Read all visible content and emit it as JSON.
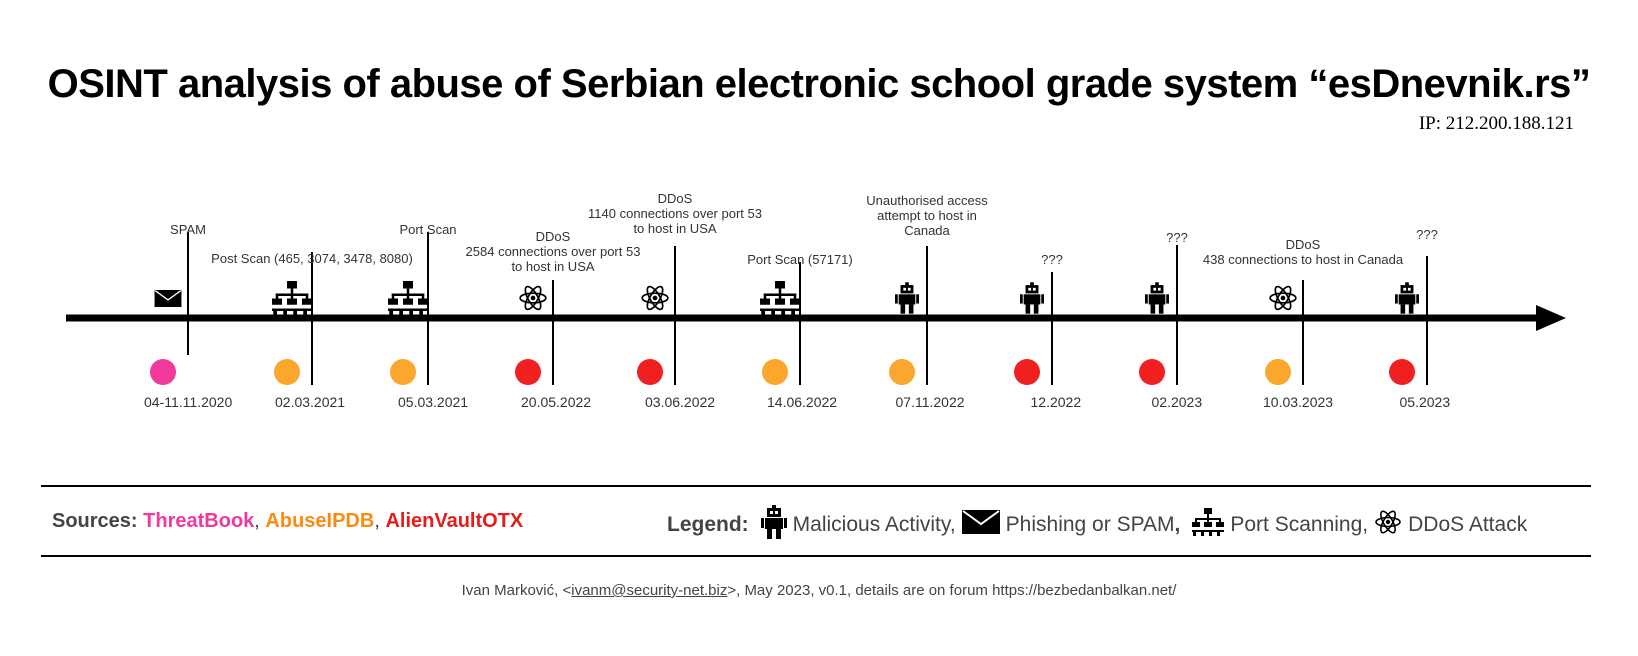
{
  "title": "OSINT analysis of abuse of Serbian electronic school grade system “esDnevnik.rs”",
  "ip": "IP: 212.200.188.121",
  "colors": {
    "threatbook": "#f0399b",
    "abuseipdb": "#fa8b12",
    "alienvault": "#e81b1b",
    "dot_threatbook": "#f0399b",
    "dot_abuseipdb": "#fba62d",
    "dot_alienvault": "#f02020"
  },
  "events": [
    {
      "date": "04-11.11.2020",
      "label": "SPAM",
      "icon": "envelope-icon",
      "source": "threatbook"
    },
    {
      "date": "02.03.2021",
      "label": "Post Scan (465, 3074, 3478, 8080)",
      "icon": "network-icon",
      "source": "abuseipdb"
    },
    {
      "date": "05.03.2021",
      "label": "Port Scan",
      "icon": "network-icon",
      "source": "abuseipdb"
    },
    {
      "date": "20.05.2022",
      "label": "DDoS\n2584 connections over port 53\nto host in USA",
      "icon": "atom-icon",
      "source": "alienvault"
    },
    {
      "date": "03.06.2022",
      "label": "DDoS\n1140 connections over port 53\nto host in USA",
      "icon": "atom-icon",
      "source": "alienvault"
    },
    {
      "date": "14.06.2022",
      "label": "Port Scan (57171)",
      "icon": "network-icon",
      "source": "abuseipdb"
    },
    {
      "date": "07.11.2022",
      "label": "Unauthorised access\nattempt to host in\nCanada",
      "icon": "robot-icon",
      "source": "abuseipdb"
    },
    {
      "date": "12.2022",
      "label": "???",
      "icon": "robot-icon",
      "source": "alienvault"
    },
    {
      "date": "02.2023",
      "label": "???",
      "icon": "robot-icon",
      "source": "alienvault"
    },
    {
      "date": "10.03.2023",
      "label": "DDoS\n438 connections to host in Canada",
      "icon": "atom-icon",
      "source": "abuseipdb"
    },
    {
      "date": "05.2023",
      "label": "???",
      "icon": "robot-icon",
      "source": "alienvault"
    }
  ],
  "sources": {
    "prefix": "Sources: ",
    "items": [
      "ThreatBook",
      "AbuseIPDB",
      "AlienVaultOTX"
    ],
    "sep": ", "
  },
  "legend": {
    "title": "Legend:",
    "malicious": "Malicious Activity,",
    "phishing": "Phishing or SPAM",
    "phishing_sep": ",",
    "portscan": "Port Scanning,",
    "ddos": "DDoS Attack"
  },
  "footer": {
    "pre": "Ivan Marković, <",
    "email": "ivanm@security-net.biz",
    "post": ">, May 2023, v0.1, details are on forum https://bezbedanbalkan.net/"
  }
}
